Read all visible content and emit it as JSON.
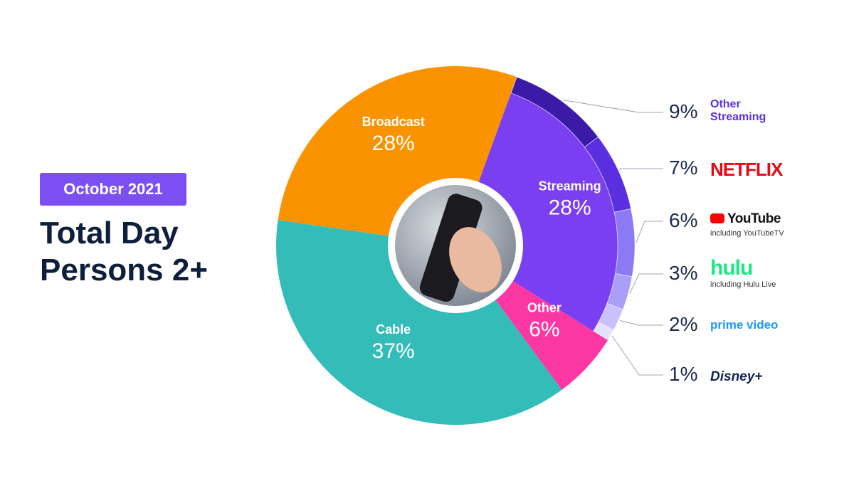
{
  "chart_data": {
    "type": "pie",
    "subtitle": "October 2021",
    "title": "Total Day Persons 2+",
    "categories": [
      "Streaming",
      "Other",
      "Cable",
      "Broadcast"
    ],
    "values": [
      28,
      6,
      37,
      28
    ],
    "value_labels": [
      "28%",
      "6%",
      "37%",
      "28%"
    ],
    "colors": [
      "#7b3ff2",
      "#fb37a3",
      "#33bcb8",
      "#fb9300"
    ],
    "breakdown": {
      "categories": [
        "Other Streaming",
        "NETFLIX",
        "YouTube",
        "hulu",
        "prime video",
        "Disney+"
      ],
      "notes": [
        null,
        null,
        "including YouTubeTV",
        "including Hulu Live",
        null,
        null
      ],
      "values": [
        9,
        7,
        6,
        3,
        2,
        1
      ],
      "value_labels": [
        "9%",
        "7%",
        "6%",
        "3%",
        "2%",
        "1%"
      ],
      "colors": [
        "#3b1aa8",
        "#5a2fe0",
        "#8c7af5",
        "#a99ff7",
        "#c8c1fb",
        "#e4e0fd"
      ]
    }
  }
}
